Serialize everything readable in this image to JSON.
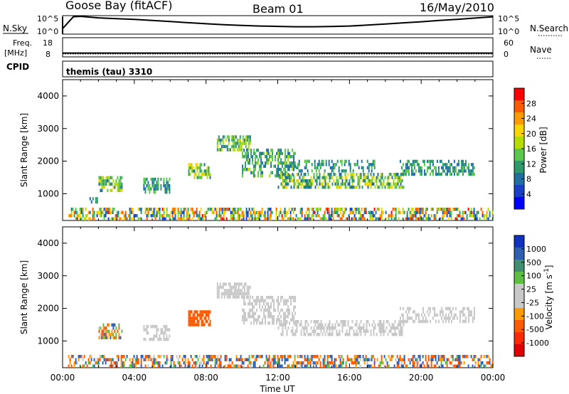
{
  "header": {
    "station": "Goose Bay (fitACF)",
    "beam": "Beam 01",
    "date": "16/May/2010"
  },
  "nsky_panel": {
    "left_label": "N.Sky",
    "right_label": "N.Search",
    "y_ticks_left": [
      "10^5",
      "10^0"
    ],
    "y_ticks_right": [
      "10^5",
      "10^0"
    ],
    "series": [
      [
        0.0,
        1.5
      ],
      [
        0.6,
        4.7
      ],
      [
        1.0,
        4.8
      ],
      [
        2.0,
        4.4
      ],
      [
        3.0,
        4.2
      ],
      [
        4.0,
        4.0
      ],
      [
        5.0,
        3.7
      ],
      [
        6.0,
        3.4
      ],
      [
        7.0,
        3.1
      ],
      [
        8.0,
        2.8
      ],
      [
        9.0,
        2.55
      ],
      [
        10.0,
        2.35
      ],
      [
        11.0,
        2.2
      ],
      [
        12.0,
        2.1
      ],
      [
        13.0,
        2.0
      ],
      [
        14.0,
        2.0
      ],
      [
        15.0,
        2.05
      ],
      [
        16.0,
        2.2
      ],
      [
        17.0,
        2.45
      ],
      [
        18.0,
        2.75
      ],
      [
        19.0,
        3.05
      ],
      [
        20.0,
        3.35
      ],
      [
        21.0,
        3.7
      ],
      [
        22.0,
        4.0
      ],
      [
        23.0,
        4.35
      ],
      [
        24.0,
        4.7
      ]
    ]
  },
  "freq_panel": {
    "left_label_line1": "Freq.",
    "left_label_line2": "[MHz]",
    "left_ticks": [
      "18",
      "8"
    ],
    "right_ticks": [
      "60",
      "0"
    ],
    "right_label": "Nave",
    "freq_value_mhz": 10.0
  },
  "cpid_panel": {
    "label": "CPID",
    "program": "themis (tau) 3310"
  },
  "power_panel": {
    "ylabel": "Slant Range [km]",
    "y_ticks": [
      "4000",
      "3000",
      "2000",
      "1000"
    ],
    "colorbar_label": "Power [dB]",
    "colorbar_ticks": [
      "28",
      "24",
      "20",
      "16",
      "12",
      "8",
      "4"
    ],
    "colors": [
      "#ff0000",
      "#ff5a00",
      "#ff9a00",
      "#ffd400",
      "#b4dc00",
      "#5ac84a",
      "#2e9a6a",
      "#1f6fa0",
      "#1840c8",
      "#0000ff"
    ]
  },
  "velocity_panel": {
    "ylabel": "Slant Range [km]",
    "y_ticks": [
      "4000",
      "3000",
      "2000",
      "1000"
    ],
    "colorbar_label": "Velocity [m s^-1]",
    "colorbar_ticks": [
      "1000",
      "500",
      "100",
      "25",
      "-25",
      "-100",
      "-500",
      "-1000"
    ],
    "colors": [
      "#1030c0",
      "#2f5fb0",
      "#3f8f70",
      "#5dc040",
      "#c8c8c8",
      "#c8c8c8",
      "#ff9a00",
      "#ff5a00",
      "#ff2a00",
      "#e00000"
    ]
  },
  "x_axis": {
    "xlabel": "Time UT",
    "tick_labels": [
      "00:00",
      "04:00",
      "08:00",
      "12:00",
      "16:00",
      "20:00",
      "00:00"
    ]
  },
  "chart_data": [
    {
      "type": "line",
      "title": "N.Sky",
      "xlabel": "Time UT",
      "xlim": [
        0,
        24
      ],
      "ylim": [
        0,
        5
      ],
      "y_scale": "log10 counts (10^0 to 10^5)"
    },
    {
      "type": "heatmap",
      "title": "Power [dB]",
      "xlabel": "Time UT",
      "ylabel": "Slant Range [km]",
      "xlim": [
        0,
        24
      ],
      "ylim": [
        180,
        4500
      ],
      "value_range": [
        0,
        30
      ],
      "regions": [
        {
          "t": [
            0.3,
            24.0
          ],
          "r": [
            180,
            550
          ],
          "v": [
            3,
            28
          ],
          "density": 0.55
        },
        {
          "t": [
            1.5,
            2.0
          ],
          "r": [
            700,
            820
          ],
          "v": [
            6,
            12
          ],
          "density": 0.7
        },
        {
          "t": [
            2.0,
            3.3
          ],
          "r": [
            1050,
            1450
          ],
          "v": [
            6,
            20
          ],
          "density": 0.6
        },
        {
          "t": [
            4.5,
            6.0
          ],
          "r": [
            1000,
            1400
          ],
          "v": [
            6,
            14
          ],
          "density": 0.6
        },
        {
          "t": [
            7.0,
            8.2
          ],
          "r": [
            1450,
            1850
          ],
          "v": [
            8,
            20
          ],
          "density": 0.65
        },
        {
          "t": [
            8.6,
            10.5
          ],
          "r": [
            2300,
            2700
          ],
          "v": [
            6,
            18
          ],
          "density": 0.7
        },
        {
          "t": [
            10.0,
            13.0
          ],
          "r": [
            1500,
            2300
          ],
          "v": [
            6,
            16
          ],
          "density": 0.55
        },
        {
          "t": [
            12.0,
            19.0
          ],
          "r": [
            1150,
            1550
          ],
          "v": [
            6,
            20
          ],
          "density": 0.6
        },
        {
          "t": [
            13.0,
            17.5
          ],
          "r": [
            1650,
            2000
          ],
          "v": [
            6,
            14
          ],
          "density": 0.35
        },
        {
          "t": [
            18.8,
            23.0
          ],
          "r": [
            1550,
            1950
          ],
          "v": [
            6,
            14
          ],
          "density": 0.5
        }
      ]
    },
    {
      "type": "heatmap",
      "title": "Velocity [m s^-1]",
      "xlabel": "Time UT",
      "ylabel": "Slant Range [km]",
      "xlim": [
        0,
        24
      ],
      "ylim": [
        180,
        4500
      ],
      "value_range": [
        -1000,
        1000
      ],
      "regions": [
        {
          "t": [
            0.3,
            24.0
          ],
          "r": [
            180,
            550
          ],
          "v": [
            -300,
            300
          ],
          "density": 0.5
        },
        {
          "t": [
            2.0,
            3.3
          ],
          "r": [
            1050,
            1450
          ],
          "v": [
            -200,
            150
          ],
          "density": 0.55
        },
        {
          "t": [
            4.5,
            6.0
          ],
          "r": [
            1000,
            1400
          ],
          "v": [
            -20,
            20
          ],
          "density": 0.55
        },
        {
          "t": [
            7.0,
            8.2
          ],
          "r": [
            1450,
            1850
          ],
          "v": [
            -500,
            -100
          ],
          "density": 0.7
        },
        {
          "t": [
            8.6,
            10.5
          ],
          "r": [
            2300,
            2700
          ],
          "v": [
            -20,
            20
          ],
          "density": 0.7
        },
        {
          "t": [
            10.0,
            13.0
          ],
          "r": [
            1500,
            2300
          ],
          "v": [
            -20,
            20
          ],
          "density": 0.5
        },
        {
          "t": [
            12.0,
            19.0
          ],
          "r": [
            1150,
            1550
          ],
          "v": [
            -20,
            20
          ],
          "density": 0.55
        },
        {
          "t": [
            18.8,
            23.0
          ],
          "r": [
            1550,
            1950
          ],
          "v": [
            -20,
            20
          ],
          "density": 0.45
        }
      ]
    }
  ]
}
